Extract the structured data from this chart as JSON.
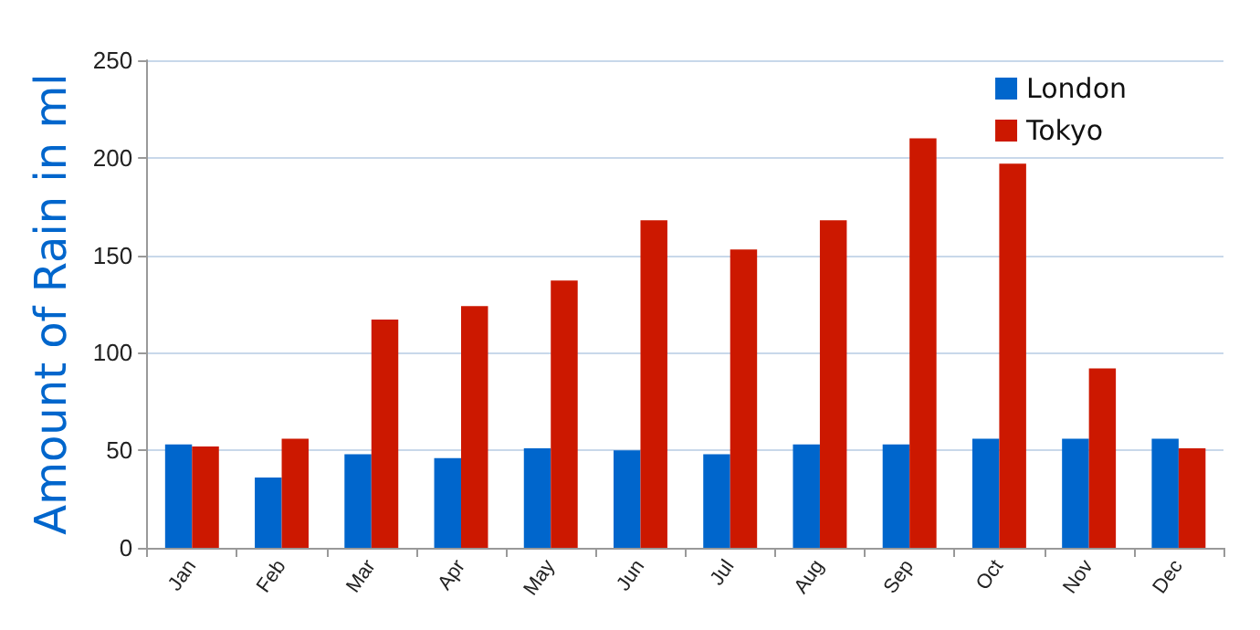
{
  "chart_data": {
    "type": "bar",
    "ylabel": "Amount of Rain in ml",
    "categories": [
      "Jan",
      "Feb",
      "Mar",
      "Apr",
      "May",
      "Jun",
      "Jul",
      "Aug",
      "Sep",
      "Oct",
      "Nov",
      "Dec"
    ],
    "series": [
      {
        "name": "London",
        "color": "#0066cc",
        "values": [
          53,
          36,
          48,
          46,
          51,
          50,
          48,
          53,
          53,
          56,
          56,
          56
        ]
      },
      {
        "name": "Tokyo",
        "color": "#cc1800",
        "values": [
          52,
          56,
          117,
          124,
          137,
          168,
          153,
          168,
          210,
          197,
          92,
          51
        ]
      }
    ],
    "ylim": [
      0,
      250
    ],
    "yticks": [
      0,
      50,
      100,
      150,
      200,
      250
    ],
    "grid": "y",
    "legend": "top right"
  }
}
